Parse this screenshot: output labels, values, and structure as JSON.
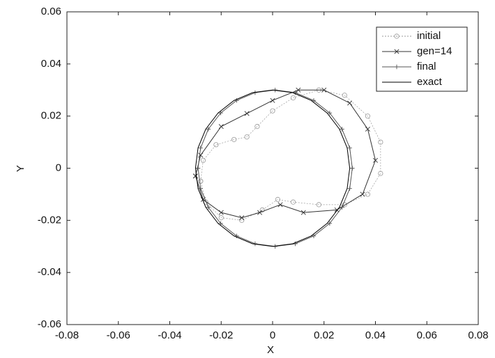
{
  "chart_data": {
    "type": "line",
    "x_label": "X",
    "y_label": "Y",
    "xlim": [
      -0.08,
      0.08
    ],
    "ylim": [
      -0.06,
      0.06
    ],
    "xticks": [
      -0.08,
      -0.06,
      -0.04,
      -0.02,
      0,
      0.02,
      0.04,
      0.06,
      0.08
    ],
    "yticks": [
      -0.06,
      -0.04,
      -0.02,
      0,
      0.02,
      0.04,
      0.06
    ],
    "legend": "upper right",
    "series": [
      {
        "name": "initial",
        "color": "#999999",
        "marker": "o",
        "x": [
          -0.028,
          -0.027,
          -0.022,
          -0.015,
          -0.01,
          -0.006,
          0,
          0.008,
          0.018,
          0.028,
          0.037,
          0.042,
          0.042,
          0.037,
          0.028,
          0.018,
          0.008,
          0.002,
          -0.004,
          -0.012,
          -0.02,
          -0.026,
          -0.028
        ],
        "values": [
          -0.005,
          0.003,
          0.009,
          0.011,
          0.012,
          0.016,
          0.022,
          0.027,
          0.03,
          0.028,
          0.02,
          0.01,
          -0.002,
          -0.01,
          -0.014,
          -0.014,
          -0.013,
          -0.012,
          -0.016,
          -0.02,
          -0.019,
          -0.013,
          -0.005
        ]
      },
      {
        "name": "gen=14",
        "color": "#333333",
        "marker": "x",
        "x": [
          -0.03,
          -0.028,
          -0.02,
          -0.01,
          0,
          0.01,
          0.02,
          0.03,
          0.037,
          0.04,
          0.035,
          0.025,
          0.012,
          0.003,
          -0.005,
          -0.012,
          -0.02,
          -0.027,
          -0.03
        ],
        "values": [
          -0.003,
          0.005,
          0.016,
          0.021,
          0.026,
          0.03,
          0.03,
          0.025,
          0.015,
          0.003,
          -0.01,
          -0.016,
          -0.017,
          -0.014,
          -0.017,
          -0.019,
          -0.017,
          -0.012,
          -0.003
        ]
      },
      {
        "name": "final",
        "color": "#555555",
        "marker": "+",
        "x": [
          0.031,
          0.03,
          0.027,
          0.0222,
          0.016,
          0.0088,
          0.001,
          -0.0068,
          -0.014,
          -0.0202,
          -0.025,
          -0.028,
          -0.029,
          -0.028,
          -0.025,
          -0.0202,
          -0.014,
          -0.0068,
          0.001,
          0.0088,
          0.016,
          0.0222,
          0.027,
          0.03,
          0.031
        ],
        "values": [
          0,
          0.0078,
          0.015,
          0.0212,
          0.026,
          0.029,
          0.03,
          0.029,
          0.026,
          0.0212,
          0.015,
          0.0078,
          0,
          -0.0078,
          -0.015,
          -0.0212,
          -0.026,
          -0.029,
          -0.03,
          -0.029,
          -0.026,
          -0.0212,
          -0.015,
          -0.0078,
          0
        ]
      },
      {
        "name": "exact",
        "color": "#000000",
        "marker": "none",
        "x": [
          0.03,
          0.029,
          0.026,
          0.0212,
          0.015,
          0.0078,
          0,
          -0.0078,
          -0.015,
          -0.0212,
          -0.026,
          -0.029,
          -0.03,
          -0.029,
          -0.026,
          -0.0212,
          -0.015,
          -0.0078,
          0,
          0.0078,
          0.015,
          0.0212,
          0.026,
          0.029,
          0.03
        ],
        "values": [
          0,
          0.0078,
          0.015,
          0.0212,
          0.026,
          0.029,
          0.03,
          0.029,
          0.026,
          0.0212,
          0.015,
          0.0078,
          0,
          -0.0078,
          -0.015,
          -0.0212,
          -0.026,
          -0.029,
          -0.03,
          -0.029,
          -0.026,
          -0.0212,
          -0.015,
          -0.0078,
          0
        ]
      }
    ]
  }
}
